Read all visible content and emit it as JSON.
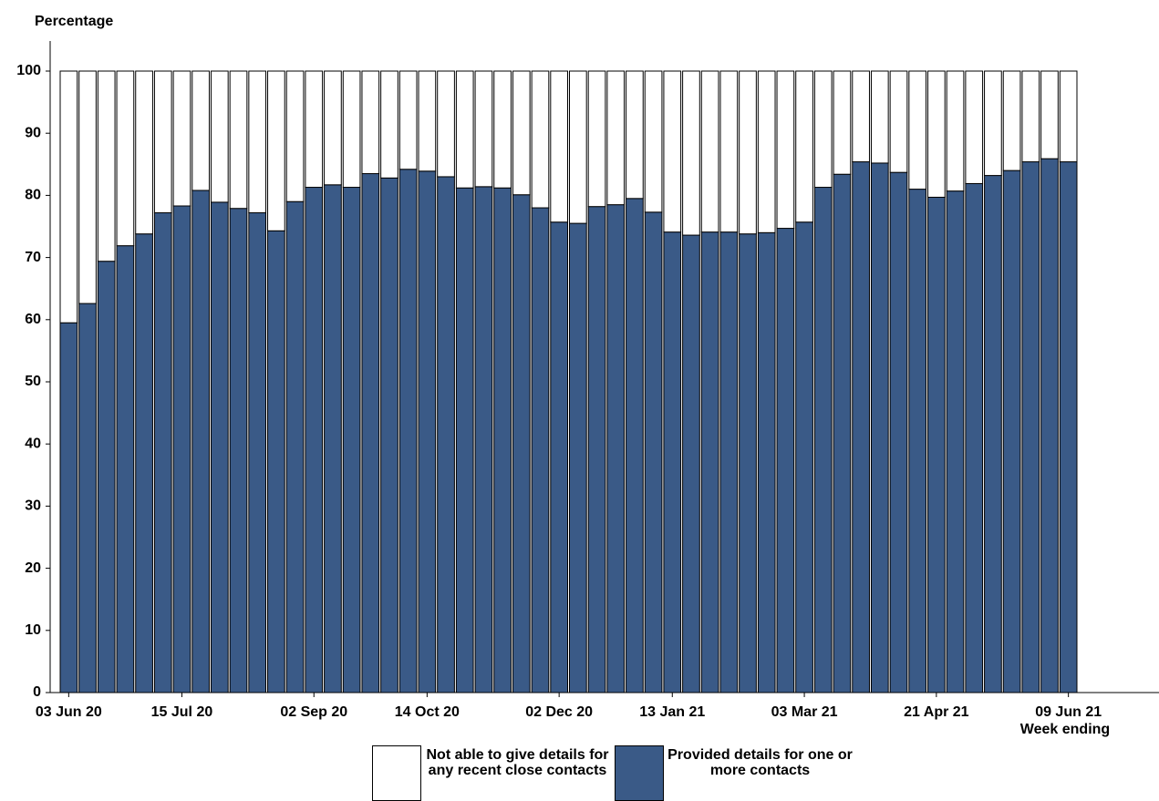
{
  "chart_data": {
    "type": "stacked-bar",
    "y_label": "Percentage",
    "x_label": "Week ending",
    "categories": [
      "03 Jun 20",
      null,
      null,
      null,
      null,
      null,
      "15 Jul 20",
      null,
      null,
      null,
      null,
      null,
      null,
      "02 Sep 20",
      null,
      null,
      null,
      null,
      null,
      "14 Oct 20",
      null,
      null,
      null,
      null,
      null,
      null,
      "02 Dec 20",
      null,
      null,
      null,
      null,
      null,
      "13 Jan 21",
      null,
      null,
      null,
      null,
      null,
      null,
      "03 Mar 21",
      null,
      null,
      null,
      null,
      null,
      null,
      "21 Apr 21",
      null,
      null,
      null,
      null,
      null,
      null,
      "09 Jun 21"
    ],
    "series": [
      {
        "name": "Provided details for one or more contacts",
        "color": "#3a5a87",
        "values": [
          59.5,
          62.6,
          69.4,
          71.9,
          73.8,
          77.2,
          78.3,
          80.8,
          78.9,
          77.9,
          77.2,
          74.3,
          79.0,
          81.3,
          81.7,
          81.3,
          83.5,
          82.8,
          84.2,
          83.9,
          83.0,
          81.2,
          81.4,
          81.2,
          80.1,
          78.0,
          75.7,
          75.5,
          78.2,
          78.5,
          79.5,
          77.3,
          74.1,
          73.6,
          74.1,
          74.1,
          73.8,
          74.0,
          74.7,
          75.7,
          81.3,
          83.4,
          85.4,
          85.2,
          83.7,
          81.0,
          79.7,
          80.7,
          81.9,
          83.2,
          84.0,
          85.4,
          85.9,
          85.4
        ]
      },
      {
        "name": "Not able to give details for any recent close contacts",
        "color": "#ffffff",
        "values": [
          40.5,
          37.4,
          30.6,
          28.1,
          26.2,
          22.8,
          21.7,
          19.2,
          21.1,
          22.1,
          22.8,
          25.7,
          21.0,
          18.7,
          18.3,
          18.7,
          16.5,
          17.2,
          15.8,
          16.1,
          17.0,
          18.8,
          18.6,
          18.8,
          19.9,
          22.0,
          24.3,
          24.5,
          21.8,
          21.5,
          20.5,
          22.7,
          25.9,
          26.4,
          25.9,
          25.9,
          26.2,
          26.0,
          25.3,
          24.3,
          18.7,
          16.6,
          14.6,
          14.8,
          16.3,
          19.0,
          20.3,
          19.3,
          18.1,
          16.8,
          16.0,
          14.6,
          14.1,
          14.6
        ]
      }
    ],
    "ylim": [
      0,
      100
    ],
    "yticks": [
      0,
      10,
      20,
      30,
      40,
      50,
      60,
      70,
      80,
      90,
      100
    ],
    "grid": false
  }
}
